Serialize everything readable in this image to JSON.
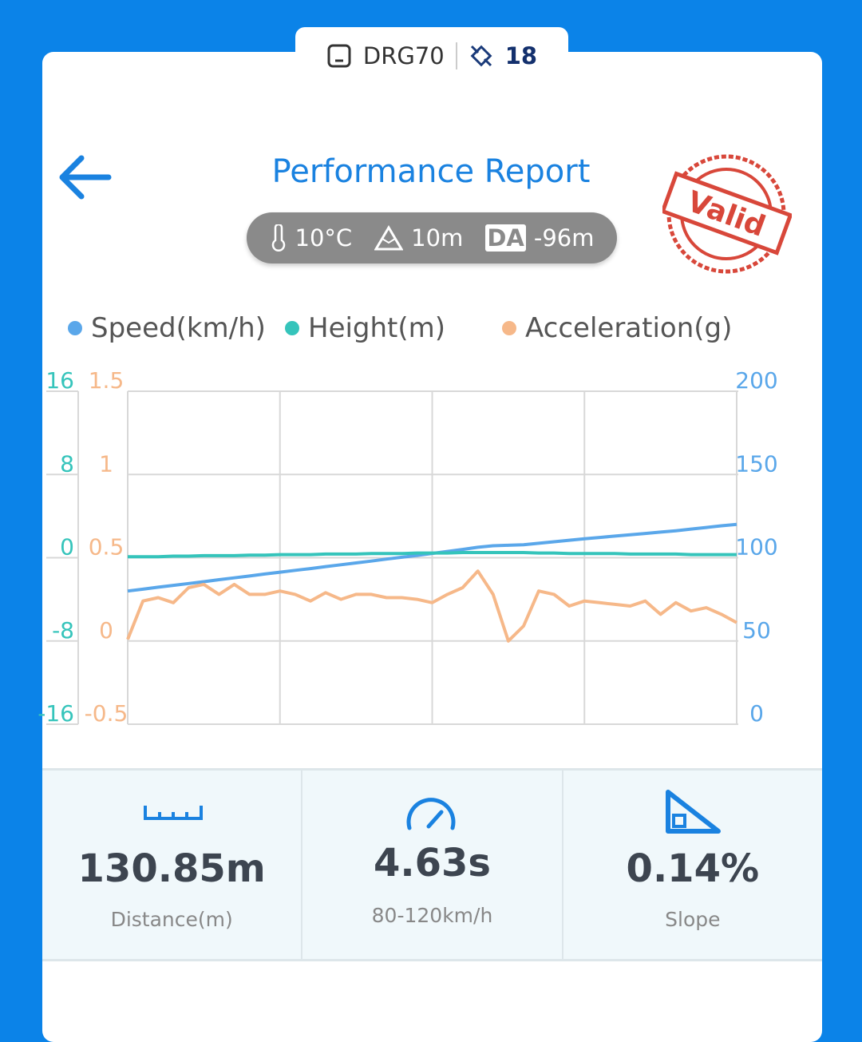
{
  "header": {
    "device": "DRG70",
    "satellites": "18",
    "title": "Performance Report",
    "temperature": "10°C",
    "altitude": "10m",
    "da_label": "DA",
    "density_altitude": "-96m",
    "stamp": "Valid"
  },
  "chart_data": {
    "type": "line",
    "grid": true,
    "ylim": [
      -16,
      16
    ],
    "yticks": [
      -16,
      -8,
      0,
      8,
      16
    ],
    "y2lim": [
      0,
      200
    ],
    "y2ticks": [
      0,
      50,
      100,
      150,
      200
    ],
    "y3lim": [
      -0.5,
      1.5
    ],
    "y3ticks": [
      -0.5,
      0,
      0.5,
      1,
      1.5
    ],
    "series": [
      {
        "name": "Speed(km/h)",
        "color": "#5aa7ea",
        "axis": "y2",
        "values": [
          80,
          81.1,
          82.3,
          83.4,
          84.5,
          85.6,
          86.8,
          87.9,
          89,
          90.2,
          91.3,
          92.4,
          93.5,
          94.7,
          95.8,
          96.9,
          98,
          99.2,
          100.3,
          101.4,
          102.6,
          103.8,
          105,
          106.3,
          107.2,
          107.5,
          107.8,
          108.7,
          109.6,
          110.5,
          111.4,
          112.2,
          113,
          113.8,
          114.6,
          115.4,
          116.2,
          117.2,
          118.2,
          119.2,
          120
        ]
      },
      {
        "name": "Height(m)",
        "color": "#35c4bb",
        "axis": "y",
        "values": [
          0.1,
          0.1,
          0.1,
          0.15,
          0.15,
          0.2,
          0.2,
          0.2,
          0.25,
          0.25,
          0.3,
          0.3,
          0.3,
          0.35,
          0.35,
          0.35,
          0.4,
          0.4,
          0.4,
          0.45,
          0.45,
          0.45,
          0.5,
          0.5,
          0.5,
          0.5,
          0.5,
          0.45,
          0.45,
          0.4,
          0.4,
          0.4,
          0.4,
          0.35,
          0.35,
          0.35,
          0.35,
          0.3,
          0.3,
          0.3,
          0.3
        ]
      },
      {
        "name": "Acceleration(g)",
        "color": "#f6b889",
        "axis": "y3",
        "values": [
          0.01,
          0.24,
          0.26,
          0.23,
          0.32,
          0.34,
          0.28,
          0.34,
          0.28,
          0.28,
          0.3,
          0.28,
          0.24,
          0.29,
          0.25,
          0.28,
          0.28,
          0.26,
          0.26,
          0.25,
          0.23,
          0.28,
          0.32,
          0.42,
          0.28,
          0,
          0.09,
          0.3,
          0.28,
          0.21,
          0.24,
          0.23,
          0.22,
          0.21,
          0.24,
          0.16,
          0.23,
          0.18,
          0.2,
          0.16,
          0.11
        ]
      }
    ]
  },
  "stats": [
    {
      "value": "130.85m",
      "label": "Distance(m)"
    },
    {
      "value": "4.63s",
      "label": "80-120km/h"
    },
    {
      "value": "0.14%",
      "label": "Slope"
    }
  ]
}
